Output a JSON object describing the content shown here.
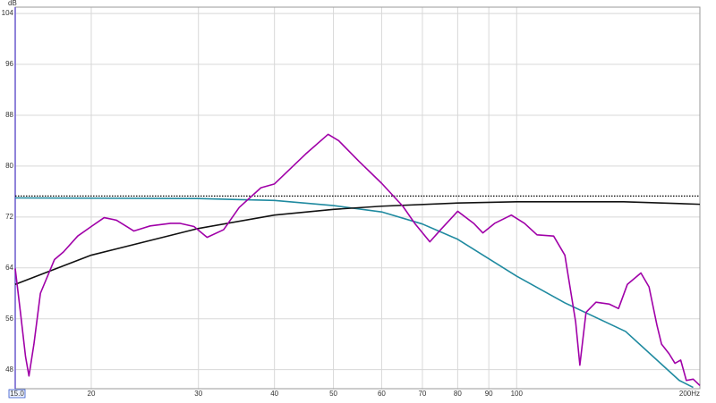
{
  "chart_data": {
    "type": "line",
    "y_label": "dB",
    "log_x": true,
    "grid": true,
    "xlim": [
      15,
      200
    ],
    "ylim": [
      45,
      105
    ],
    "xticks": [
      {
        "value": 15,
        "label": "15.0"
      },
      20,
      30,
      40,
      50,
      60,
      70,
      80,
      90,
      100,
      {
        "value": 200,
        "label": "200Hz"
      }
    ],
    "yticks": [
      48,
      56,
      64,
      72,
      80,
      88,
      96,
      104
    ],
    "series": [
      {
        "color": "#000000",
        "dash": "dotted",
        "x": [
          15,
          200
        ],
        "values": [
          75.3,
          75.3
        ]
      },
      {
        "color": "#1f8aa0",
        "x": [
          15,
          30,
          40,
          50,
          60,
          70,
          80,
          100,
          120,
          151,
          185,
          195
        ],
        "values": [
          75,
          74.9,
          74.6,
          73.8,
          72.8,
          70.9,
          68.5,
          62.7,
          58.5,
          54,
          46.3,
          45.2
        ]
      },
      {
        "color": "#111111",
        "x": [
          15,
          20,
          30,
          40,
          50,
          60,
          80,
          100,
          150,
          200
        ],
        "values": [
          61.4,
          66,
          70.2,
          72.3,
          73.2,
          73.7,
          74.2,
          74.4,
          74.4,
          74
        ]
      },
      {
        "color": "#a000a8",
        "x": [
          15,
          15.3,
          15.6,
          15.8,
          16.1,
          16.5,
          17.4,
          18,
          19,
          20,
          21,
          22,
          23.5,
          25,
          27,
          28,
          29.5,
          31,
          33,
          35,
          38,
          40,
          45,
          49,
          51,
          55,
          60,
          65,
          68,
          72,
          75,
          80,
          85,
          88,
          92,
          98,
          103,
          108,
          115,
          120,
          125,
          127,
          130,
          135,
          142,
          147,
          152,
          160,
          165,
          170,
          173,
          178,
          182,
          186,
          190,
          195,
          200
        ],
        "values": [
          63.9,
          57,
          50,
          47,
          52,
          60,
          65.3,
          66.5,
          69,
          70.5,
          71.9,
          71.5,
          69.8,
          70.6,
          71,
          71,
          70.5,
          68.8,
          70,
          73.5,
          76.6,
          77.2,
          81.9,
          85,
          84,
          80.8,
          77.3,
          73.7,
          71,
          68.1,
          70,
          72.9,
          71,
          69.5,
          71,
          72.3,
          71,
          69.2,
          69,
          66,
          55.5,
          48.7,
          57,
          58.6,
          58.3,
          57.6,
          61.4,
          63.2,
          61,
          55,
          52,
          50.5,
          49,
          49.5,
          46.3,
          46.5,
          45.5
        ]
      }
    ]
  }
}
